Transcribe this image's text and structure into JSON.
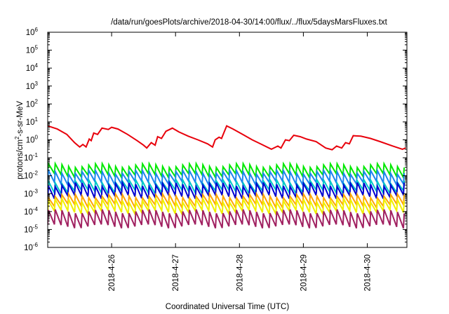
{
  "chart_data": {
    "type": "line",
    "title": "/data/run/goesPlots/archive/2018-04-30/14:00/flux/../flux/5daysMarsFluxes.txt",
    "xlabel": "Coordinated Universal Time (UTC)",
    "ylabel": {
      "pre": "protons/cm",
      "sup": "2",
      "post": "-s-sr-MeV"
    },
    "yscale": "log",
    "ylim_exponents": [
      -6,
      6
    ],
    "ytick_exponents": [
      -6,
      -5,
      -4,
      -3,
      -2,
      -1,
      0,
      1,
      2,
      3,
      4,
      5,
      6
    ],
    "ytick_base": "10",
    "xlim_days": [
      25.0,
      30.62
    ],
    "xticks": [
      {
        "day": 26,
        "label": "2018-4-26"
      },
      {
        "day": 27,
        "label": "2018-4-27"
      },
      {
        "day": 28,
        "label": "2018-4-28"
      },
      {
        "day": 29,
        "label": "2018-4-29"
      },
      {
        "day": 30,
        "label": "2018-4-30"
      }
    ],
    "grid": false,
    "legend": "none",
    "series": [
      {
        "color": "#e8000b",
        "x": [
          25.0,
          25.15,
          25.3,
          25.42,
          25.5,
          25.55,
          25.6,
          25.65,
          25.68,
          25.72,
          25.78,
          25.85,
          25.95,
          26.0,
          26.1,
          26.25,
          26.4,
          26.5,
          26.55,
          26.62,
          26.68,
          26.72,
          26.78,
          26.85,
          26.95,
          27.05,
          27.2,
          27.35,
          27.5,
          27.58,
          27.62,
          27.68,
          27.72,
          27.8,
          27.9,
          28.05,
          28.2,
          28.35,
          28.5,
          28.6,
          28.65,
          28.72,
          28.78,
          28.85,
          28.95,
          29.05,
          29.2,
          29.35,
          29.45,
          29.52,
          29.6,
          29.66,
          29.72,
          29.78,
          29.9,
          30.05,
          30.2,
          30.4,
          30.55,
          30.6
        ],
        "y": [
          6,
          4,
          2,
          0.7,
          0.4,
          0.55,
          0.4,
          1.1,
          0.9,
          2.4,
          2.0,
          4.5,
          3.8,
          5.0,
          4.0,
          2.0,
          0.9,
          0.5,
          0.35,
          0.7,
          0.5,
          1.5,
          1.2,
          3.0,
          4.5,
          2.8,
          1.6,
          1.0,
          0.6,
          0.4,
          1.0,
          1.4,
          1.2,
          6.0,
          4.0,
          2.0,
          1.0,
          0.55,
          0.3,
          0.45,
          0.35,
          1.0,
          0.9,
          1.8,
          1.5,
          1.1,
          0.8,
          0.35,
          0.28,
          0.45,
          0.35,
          0.7,
          0.6,
          1.7,
          1.6,
          1.2,
          0.8,
          0.45,
          0.3,
          0.35
        ]
      },
      {
        "color": "#00e800",
        "base": 0.02,
        "amp": 1.9
      },
      {
        "color": "#1c86ee",
        "base": 0.008,
        "amp": 2.0
      },
      {
        "color": "#00c8c8",
        "base": 0.0025,
        "amp": 1.9
      },
      {
        "color": "#0000d0",
        "base": 0.0015,
        "amp": 2.2
      },
      {
        "color": "#ffa500",
        "base": 0.0004,
        "amp": 1.9
      },
      {
        "color": "#f0f000",
        "base": 0.0002,
        "amp": 2.1
      },
      {
        "color": "#a02060",
        "base": 4e-05,
        "amp": 2.6
      }
    ]
  }
}
